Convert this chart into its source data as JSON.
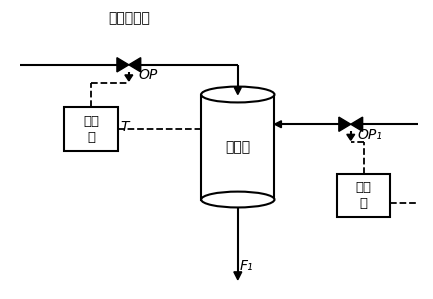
{
  "title": "温度控制阀",
  "bg_color": "#ffffff",
  "line_color": "#000000",
  "reactor_label": "反应器",
  "controller_label": "控制\n器",
  "op_label": "OP",
  "op1_label": "OP₁",
  "T_label": "T",
  "F1_label": "F₁",
  "figsize": [
    4.33,
    2.99
  ],
  "dpi": 100
}
